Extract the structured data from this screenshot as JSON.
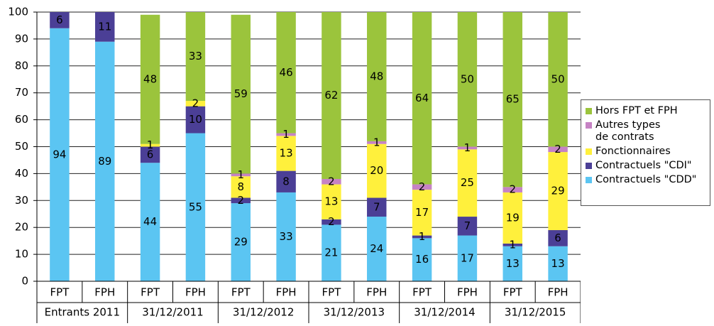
{
  "chart_data": {
    "type": "stacked_bar",
    "categories": [
      "FPT",
      "FPH",
      "FPT",
      "FPH",
      "FPT",
      "FPH",
      "FPT",
      "FPH",
      "FPT",
      "FPH",
      "FPT",
      "FPH"
    ],
    "groups": [
      "Entrants 2011",
      "31/12/2011",
      "31/12/2012",
      "31/12/2013",
      "31/12/2014",
      "31/12/2015"
    ],
    "series": [
      {
        "name": "Contractuels \"CDD\"",
        "color": "#5bc5f2",
        "values": [
          94,
          89,
          44,
          55,
          29,
          33,
          21,
          24,
          16,
          17,
          13,
          13
        ]
      },
      {
        "name": "Contractuels \"CDI\"",
        "color": "#4b3f96",
        "values": [
          6,
          11,
          6,
          10,
          2,
          8,
          2,
          7,
          1,
          7,
          1,
          6
        ]
      },
      {
        "name": "Fonctionnaires",
        "color": "#fff03c",
        "values": [
          null,
          null,
          1,
          2,
          8,
          13,
          13,
          20,
          17,
          25,
          19,
          29
        ]
      },
      {
        "name": "Autres types\nde contrats",
        "color": "#c683c4",
        "values": [
          null,
          null,
          null,
          null,
          1,
          1,
          2,
          1,
          2,
          1,
          2,
          2
        ]
      },
      {
        "name": "Hors FPT et FPH",
        "color": "#9bc43c",
        "values": [
          null,
          null,
          48,
          33,
          59,
          46,
          62,
          48,
          64,
          50,
          65,
          50
        ]
      }
    ],
    "ylim": [
      0,
      100
    ],
    "yticks": [
      0,
      10,
      20,
      30,
      40,
      50,
      60,
      70,
      80,
      90,
      100
    ],
    "grid": true,
    "legend": "right"
  }
}
